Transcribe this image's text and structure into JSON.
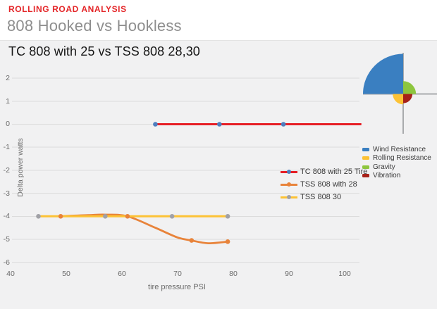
{
  "header": {
    "eyebrow": "ROLLING ROAD ANALYSIS",
    "eyebrow_color": "#e42528",
    "title": "808 Hooked vs Hookless",
    "title_color": "#8e8e8e"
  },
  "chart": {
    "title": "TC 808 with 25 vs TSS 808 28,30",
    "background": "#f1f1f2",
    "gridline_color": "#dcdcdc"
  },
  "chart_data": [
    {
      "type": "line",
      "title": "TC 808 with 25 vs TSS 808 28,30",
      "xlabel": "tire pressure PSI",
      "ylabel": "Delta power watts",
      "xlim": [
        40,
        100
      ],
      "ylim": [
        -6,
        2
      ],
      "x_ticks": [
        40,
        50,
        60,
        70,
        80,
        90,
        100
      ],
      "y_ticks": [
        2,
        1,
        0,
        -1,
        -2,
        -3,
        -4,
        -5,
        -6
      ],
      "grid": true,
      "legend_position": "center-right",
      "series": [
        {
          "name": "TC 808 with 25 Tire",
          "line_color": "#e61e25",
          "marker_color": "#4d7ebf",
          "points": [
            [
              66,
              0
            ],
            [
              77.5,
              0
            ],
            [
              89,
              0
            ]
          ],
          "line_span": [
            [
              66,
              0
            ],
            [
              103,
              0
            ]
          ]
        },
        {
          "name": "TSS 808 with 28",
          "line_color": "#e8833a",
          "marker_color": "#e8833a",
          "points": [
            [
              49,
              -4
            ],
            [
              61,
              -4
            ],
            [
              72.5,
              -5.05
            ],
            [
              79,
              -5.1
            ]
          ],
          "curve": [
            [
              49,
              -4
            ],
            [
              54,
              -3.95
            ],
            [
              57,
              -3.93
            ],
            [
              61,
              -4
            ],
            [
              66,
              -4.5
            ],
            [
              70,
              -4.92
            ],
            [
              72.5,
              -5.05
            ],
            [
              75.5,
              -5.17
            ],
            [
              79,
              -5.1
            ]
          ]
        },
        {
          "name": "TSS 808 30",
          "line_color": "#fcc235",
          "marker_color": "#a1a1a6",
          "points": [
            [
              45,
              -4
            ],
            [
              57,
              -4
            ],
            [
              69,
              -4
            ],
            [
              79,
              -4
            ]
          ]
        }
      ]
    },
    {
      "type": "pie",
      "variant": "quarter-rose",
      "axis_color": "#a9abad",
      "slices": [
        {
          "label": "Wind Resistance",
          "color": "#3a7fc1",
          "quadrant": "NW",
          "relative_radius": 1.0
        },
        {
          "label": "Rolling Resistance",
          "color": "#fcc235",
          "quadrant": "SW",
          "relative_radius": 0.26
        },
        {
          "label": "Gravity",
          "color": "#8dc63f",
          "quadrant": "NE",
          "relative_radius": 0.32
        },
        {
          "label": "Vibration",
          "color": "#a62119",
          "quadrant": "SE",
          "relative_radius": 0.23
        }
      ]
    }
  ]
}
